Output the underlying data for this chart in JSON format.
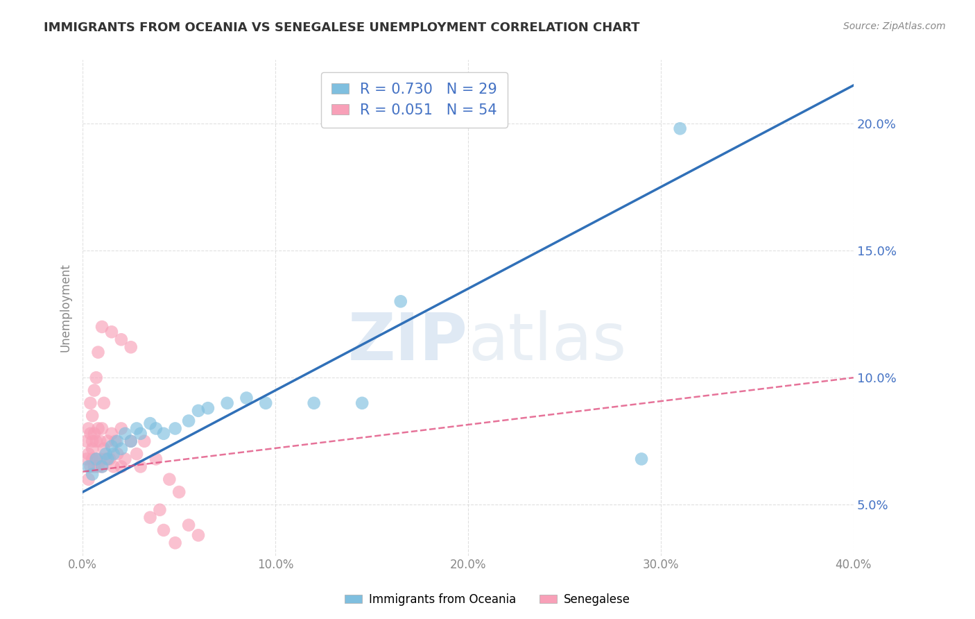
{
  "title": "IMMIGRANTS FROM OCEANIA VS SENEGALESE UNEMPLOYMENT CORRELATION CHART",
  "source": "Source: ZipAtlas.com",
  "ylabel": "Unemployment",
  "x_min": 0.0,
  "x_max": 0.4,
  "y_min": 0.03,
  "y_max": 0.225,
  "y_ticks": [
    0.05,
    0.1,
    0.15,
    0.2
  ],
  "y_tick_labels": [
    "5.0%",
    "10.0%",
    "15.0%",
    "20.0%"
  ],
  "x_ticks": [
    0.0,
    0.1,
    0.2,
    0.3,
    0.4
  ],
  "x_tick_labels": [
    "0.0%",
    "10.0%",
    "20.0%",
    "30.0%",
    "40.0%"
  ],
  "blue_R": "0.730",
  "blue_N": "29",
  "pink_R": "0.051",
  "pink_N": "54",
  "blue_color": "#7fbfdf",
  "pink_color": "#f8a0b8",
  "blue_line_color": "#3070b8",
  "pink_line_color": "#e05080",
  "watermark_zip": "ZIP",
  "watermark_atlas": "atlas",
  "blue_line_x": [
    0.0,
    0.4
  ],
  "blue_line_y": [
    0.055,
    0.215
  ],
  "pink_line_x": [
    0.0,
    0.4
  ],
  "pink_line_y": [
    0.063,
    0.1
  ],
  "blue_scatter_x": [
    0.003,
    0.005,
    0.007,
    0.01,
    0.012,
    0.013,
    0.015,
    0.016,
    0.018,
    0.02,
    0.022,
    0.025,
    0.028,
    0.03,
    0.035,
    0.038,
    0.042,
    0.048,
    0.055,
    0.06,
    0.065,
    0.075,
    0.085,
    0.095,
    0.12,
    0.145,
    0.165,
    0.29,
    0.31
  ],
  "blue_scatter_y": [
    0.065,
    0.062,
    0.068,
    0.065,
    0.07,
    0.068,
    0.073,
    0.07,
    0.075,
    0.072,
    0.078,
    0.075,
    0.08,
    0.078,
    0.082,
    0.08,
    0.078,
    0.08,
    0.083,
    0.087,
    0.088,
    0.09,
    0.092,
    0.09,
    0.09,
    0.09,
    0.13,
    0.068,
    0.198
  ],
  "pink_scatter_x": [
    0.002,
    0.002,
    0.003,
    0.003,
    0.003,
    0.004,
    0.004,
    0.004,
    0.005,
    0.005,
    0.005,
    0.005,
    0.006,
    0.006,
    0.006,
    0.007,
    0.007,
    0.007,
    0.008,
    0.008,
    0.008,
    0.009,
    0.009,
    0.01,
    0.01,
    0.011,
    0.011,
    0.012,
    0.013,
    0.014,
    0.015,
    0.016,
    0.017,
    0.018,
    0.02,
    0.02,
    0.022,
    0.025,
    0.028,
    0.03,
    0.032,
    0.035,
    0.038,
    0.04,
    0.042,
    0.045,
    0.048,
    0.05,
    0.055,
    0.06,
    0.02,
    0.025,
    0.015,
    0.01
  ],
  "pink_scatter_y": [
    0.068,
    0.075,
    0.07,
    0.08,
    0.06,
    0.065,
    0.078,
    0.09,
    0.072,
    0.068,
    0.075,
    0.085,
    0.065,
    0.078,
    0.095,
    0.068,
    0.075,
    0.1,
    0.065,
    0.08,
    0.11,
    0.068,
    0.075,
    0.065,
    0.08,
    0.072,
    0.09,
    0.068,
    0.075,
    0.068,
    0.078,
    0.065,
    0.075,
    0.07,
    0.065,
    0.08,
    0.068,
    0.075,
    0.07,
    0.065,
    0.075,
    0.045,
    0.068,
    0.048,
    0.04,
    0.06,
    0.035,
    0.055,
    0.042,
    0.038,
    0.115,
    0.112,
    0.118,
    0.12
  ],
  "background_color": "#ffffff",
  "grid_color": "#cccccc",
  "title_color": "#333333",
  "axis_label_color": "#888888",
  "tick_label_color_right": "#4472c4",
  "legend_label_color": "#4472c4",
  "legend_R_color": "#4472c4"
}
